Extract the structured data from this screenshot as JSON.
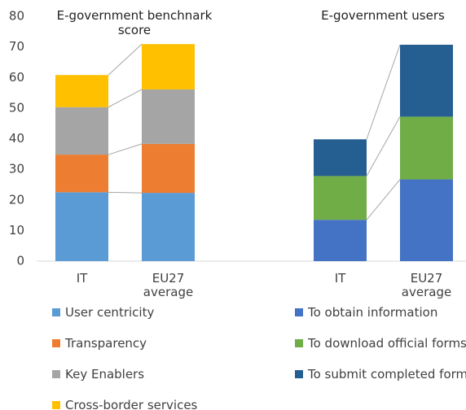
{
  "chart_data": [
    {
      "type": "bar",
      "stacked": true,
      "title": "E-government benchnark score",
      "categories": [
        "IT",
        "EU27 average"
      ],
      "series": [
        {
          "name": "User centricity",
          "color": "#5b9bd5",
          "values": [
            22.5,
            22.3
          ]
        },
        {
          "name": "Transparency",
          "color": "#ed7d31",
          "values": [
            12.3,
            16
          ]
        },
        {
          "name": "Key Enablers",
          "color": "#a5a5a5",
          "values": [
            15.5,
            17.8
          ]
        },
        {
          "name": "Cross-border services",
          "color": "#ffc000",
          "values": [
            10.5,
            14.8
          ]
        }
      ],
      "ylim": [
        0,
        80
      ],
      "yticks": [
        0,
        10,
        20,
        30,
        40,
        50,
        60,
        70,
        80
      ]
    },
    {
      "type": "bar",
      "stacked": true,
      "title": "E-government users",
      "categories": [
        "IT",
        "EU27 average"
      ],
      "series": [
        {
          "name": "To obtain information",
          "color": "#4472c4",
          "values": [
            13.5,
            26.7
          ]
        },
        {
          "name": "To download official forms",
          "color": "#70ad47",
          "values": [
            14.3,
            20.5
          ]
        },
        {
          "name": "To submit completed forms",
          "color": "#255e91",
          "values": [
            12,
            23.5
          ]
        }
      ]
    }
  ]
}
